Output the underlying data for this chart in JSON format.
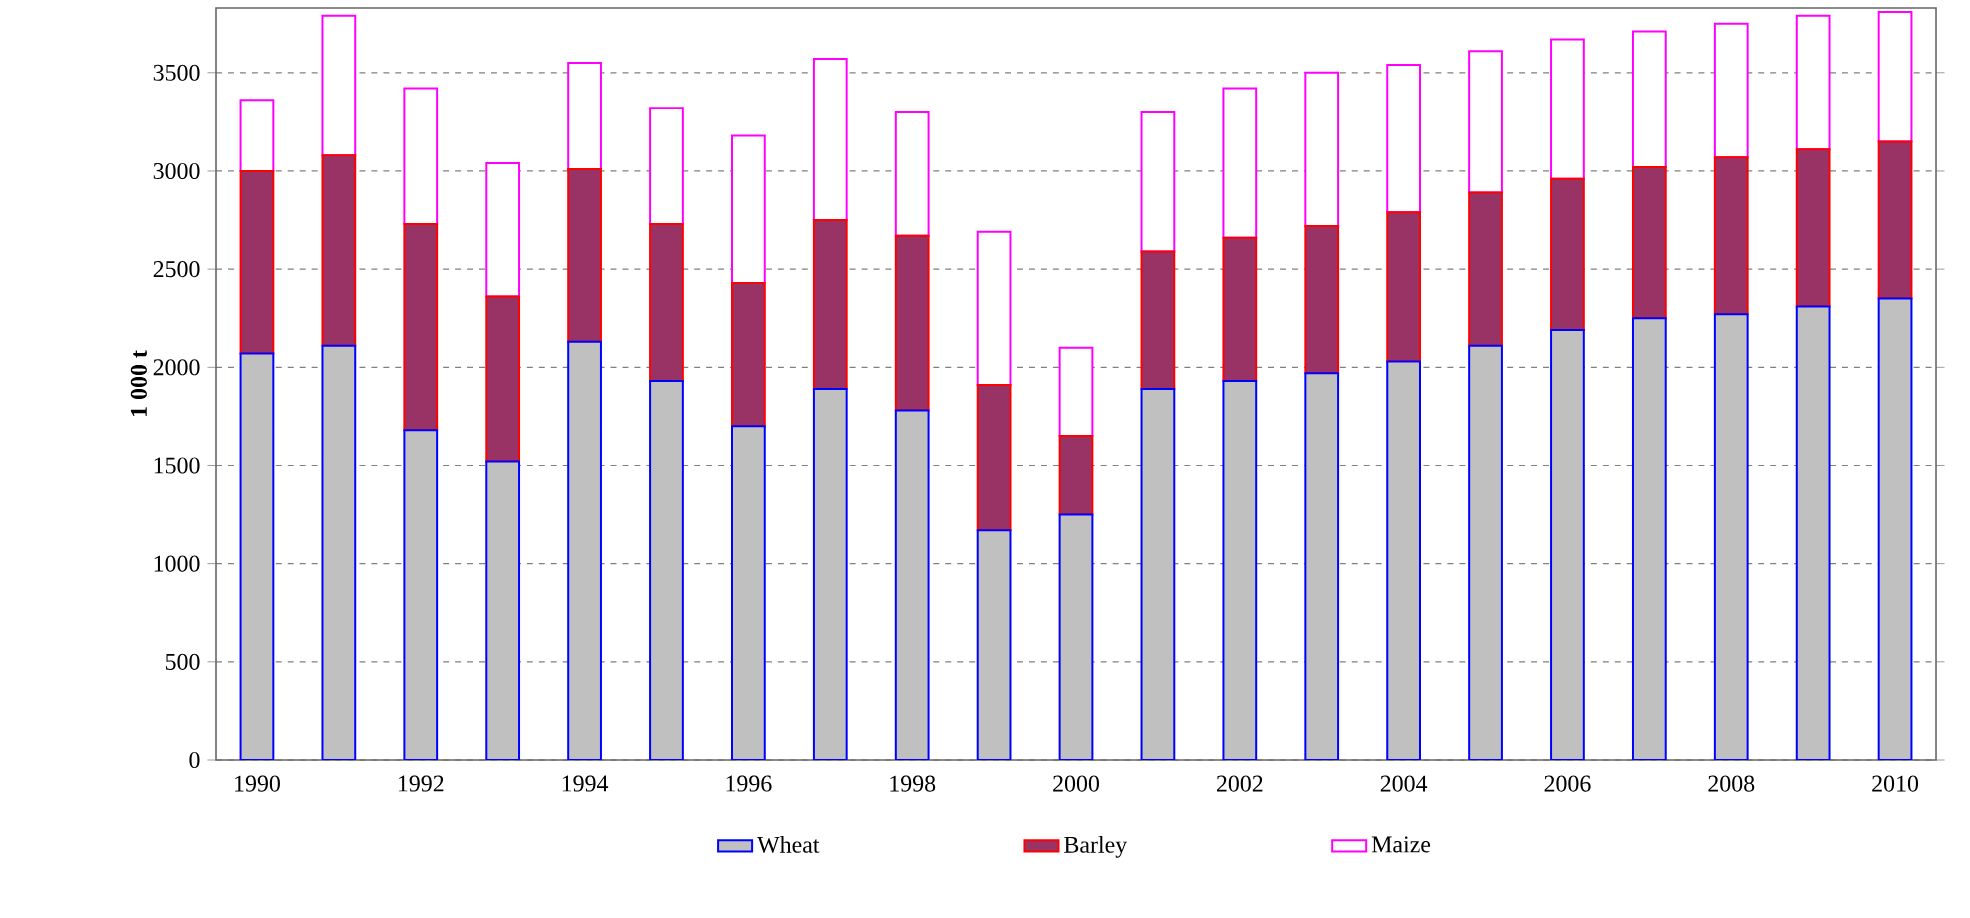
{
  "chart_data": {
    "type": "bar",
    "stacked": true,
    "ylabel": "1 000 t",
    "categories": [
      "1990",
      null,
      "1992",
      null,
      "1994",
      null,
      "1996",
      null,
      "1998",
      null,
      "2000",
      null,
      "2002",
      null,
      "2004",
      null,
      "2006",
      null,
      "2008",
      null,
      "2010"
    ],
    "series": [
      {
        "name": "Wheat",
        "color": "#c0c0c0",
        "values": [
          2070,
          2110,
          1680,
          1520,
          2130,
          1930,
          1700,
          1890,
          1780,
          1170,
          1250,
          1890,
          1930,
          1970,
          2030,
          2110,
          2190,
          2250,
          2270,
          2310,
          2350
        ]
      },
      {
        "name": "Barley",
        "color": "#993366",
        "values": [
          930,
          970,
          1050,
          840,
          880,
          800,
          730,
          860,
          890,
          740,
          400,
          700,
          730,
          750,
          760,
          780,
          770,
          770,
          800,
          800,
          800
        ]
      },
      {
        "name": "Maize",
        "color": "#ffffff",
        "values": [
          360,
          710,
          690,
          680,
          540,
          590,
          750,
          820,
          630,
          780,
          450,
          710,
          760,
          780,
          750,
          720,
          710,
          690,
          680,
          680,
          660
        ]
      }
    ],
    "ylim": [
      0,
      3830
    ],
    "yticks": [
      0,
      500,
      1000,
      1500,
      2000,
      2500,
      3000,
      3500
    ],
    "grid": "y",
    "legend": "bottom"
  }
}
